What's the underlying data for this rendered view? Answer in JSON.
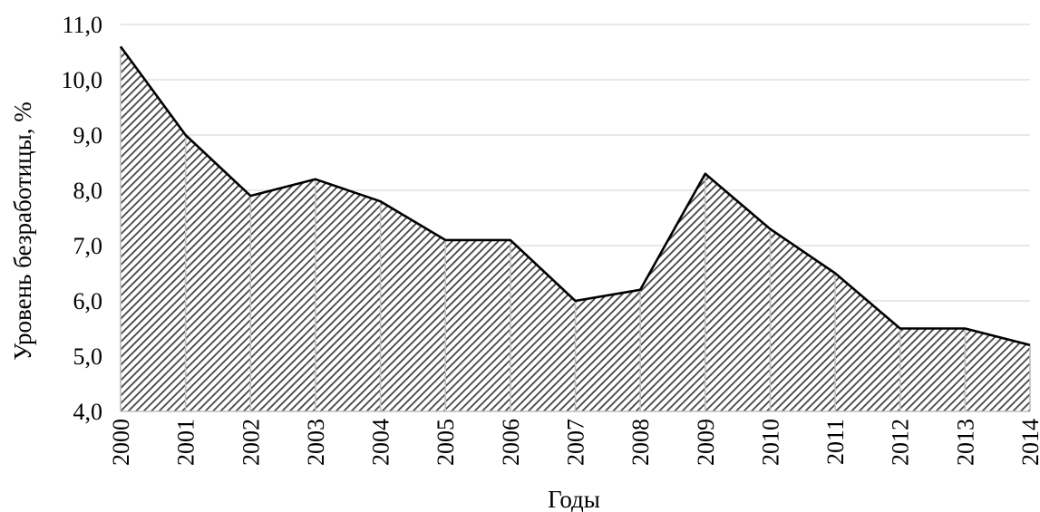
{
  "chart_data": {
    "type": "area",
    "x": [
      "2000",
      "2001",
      "2002",
      "2003",
      "2004",
      "2005",
      "2006",
      "2007",
      "2008",
      "2009",
      "2010",
      "2011",
      "2012",
      "2013",
      "2014"
    ],
    "series": [
      {
        "values": [
          10.6,
          9.0,
          7.9,
          8.2,
          7.8,
          7.1,
          7.1,
          6.0,
          6.2,
          8.3,
          7.3,
          6.5,
          5.5,
          5.5,
          5.2
        ]
      }
    ],
    "xlabel": "Годы",
    "ylabel": "Уровень безработицы, %",
    "ylim": [
      4.0,
      11.0
    ],
    "yticks": [
      "4,0",
      "5,0",
      "6,0",
      "7,0",
      "8,0",
      "9,0",
      "10,0",
      "11,0"
    ],
    "grid": true,
    "fill": "diagonal-hatch",
    "colors": {
      "line": "#000000",
      "grid": "#d9d9d9",
      "hatch": "#444444",
      "vertical_lines": "#bdbdbd"
    }
  }
}
